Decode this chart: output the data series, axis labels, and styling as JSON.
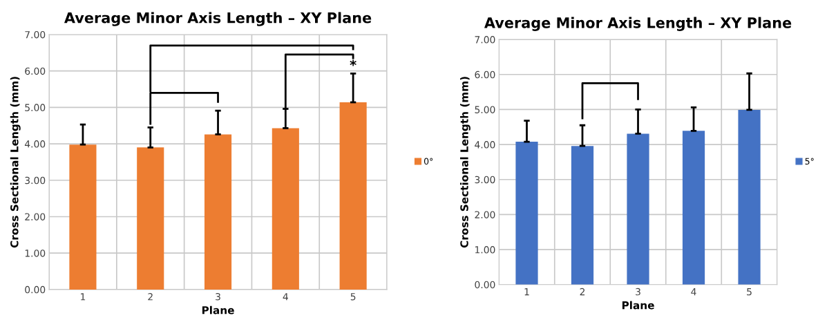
{
  "chart_data": [
    {
      "type": "bar",
      "title": "Average Minor Axis Length – XY Plane",
      "xlabel": "Plane",
      "ylabel": "Cross Sectional Length (mm)",
      "categories": [
        "1",
        "2",
        "3",
        "4",
        "5"
      ],
      "series": [
        {
          "name": "0°",
          "color": "#ed7d31",
          "values": [
            3.98,
            3.9,
            4.26,
            4.43,
            5.14
          ],
          "errors": [
            [
              3.98,
              4.53
            ],
            [
              3.9,
              4.45
            ],
            [
              4.26,
              4.91
            ],
            [
              4.43,
              4.96
            ],
            [
              5.14,
              5.93
            ]
          ]
        }
      ],
      "ylim": [
        0,
        7
      ],
      "yticks": [
        {
          "value": 0,
          "label": "0.00"
        },
        {
          "value": 1,
          "label": "1.00"
        },
        {
          "value": 2,
          "label": "2.00"
        },
        {
          "value": 3,
          "label": "3.00"
        },
        {
          "value": 4,
          "label": "4.00"
        },
        {
          "value": 5,
          "label": "5.00"
        },
        {
          "value": 6,
          "label": "6.00"
        },
        {
          "value": 7,
          "label": "7.00"
        }
      ],
      "grid": true,
      "legend": "right",
      "annotations": [
        {
          "text": "*",
          "x": "5",
          "y": 5.93
        }
      ]
    },
    {
      "type": "bar",
      "title": "Average Minor Axis Length – XY Plane",
      "xlabel": "Plane",
      "ylabel": "Cross Sectional Length (mm)",
      "categories": [
        "1",
        "2",
        "3",
        "4",
        "5"
      ],
      "series": [
        {
          "name": "5°",
          "color": "#4472c4",
          "values": [
            4.08,
            3.96,
            4.31,
            4.39,
            4.99
          ],
          "errors": [
            [
              4.08,
              4.68
            ],
            [
              3.96,
              4.55
            ],
            [
              4.31,
              5.0
            ],
            [
              4.39,
              5.06
            ],
            [
              4.99,
              6.03
            ]
          ]
        }
      ],
      "ylim": [
        0,
        7
      ],
      "yticks": [
        {
          "value": 0,
          "label": "0.00"
        },
        {
          "value": 1,
          "label": "1.00"
        },
        {
          "value": 2,
          "label": "2.00"
        },
        {
          "value": 3,
          "label": "3.00"
        },
        {
          "value": 4,
          "label": "4.00"
        },
        {
          "value": 5,
          "label": "5.00"
        },
        {
          "value": 6,
          "label": "6.00"
        },
        {
          "value": 7,
          "label": "7.00"
        }
      ],
      "grid": true,
      "legend": "right"
    }
  ]
}
